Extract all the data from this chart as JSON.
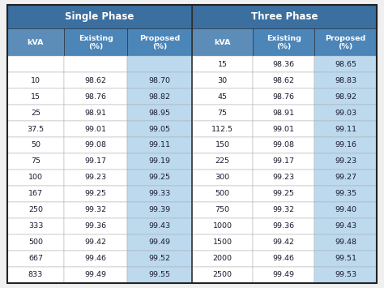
{
  "title_single": "Single Phase",
  "title_three": "Three Phase",
  "col_headers": [
    "kVA",
    "Existing\n(%)",
    "Proposed\n(%)",
    "kVA",
    "Existing\n(%)",
    "Proposed\n(%)"
  ],
  "single_phase": [
    [
      "",
      "",
      ""
    ],
    [
      "10",
      "98.62",
      "98.70"
    ],
    [
      "15",
      "98.76",
      "98.82"
    ],
    [
      "25",
      "98.91",
      "98.95"
    ],
    [
      "37.5",
      "99.01",
      "99.05"
    ],
    [
      "50",
      "99.08",
      "99.11"
    ],
    [
      "75",
      "99.17",
      "99.19"
    ],
    [
      "100",
      "99.23",
      "99.25"
    ],
    [
      "167",
      "99.25",
      "99.33"
    ],
    [
      "250",
      "99.32",
      "99.39"
    ],
    [
      "333",
      "99.36",
      "99.43"
    ],
    [
      "500",
      "99.42",
      "99.49"
    ],
    [
      "667",
      "99.46",
      "99.52"
    ],
    [
      "833",
      "99.49",
      "99.55"
    ]
  ],
  "three_phase": [
    [
      "15",
      "98.36",
      "98.65"
    ],
    [
      "30",
      "98.62",
      "98.83"
    ],
    [
      "45",
      "98.76",
      "98.92"
    ],
    [
      "75",
      "98.91",
      "99.03"
    ],
    [
      "112.5",
      "99.01",
      "99.11"
    ],
    [
      "150",
      "99.08",
      "99.16"
    ],
    [
      "225",
      "99.17",
      "99.23"
    ],
    [
      "300",
      "99.23",
      "99.27"
    ],
    [
      "500",
      "99.25",
      "99.35"
    ],
    [
      "750",
      "99.32",
      "99.40"
    ],
    [
      "1000",
      "99.36",
      "99.43"
    ],
    [
      "1500",
      "99.42",
      "99.48"
    ],
    [
      "2000",
      "99.46",
      "99.51"
    ],
    [
      "2500",
      "99.49",
      "99.53"
    ]
  ],
  "header_dark_blue": "#3B6FA0",
  "header_medium_blue": "#4C85B8",
  "kva_col_bg": "#5B8DB8",
  "proposed_col_bg": "#BDD9EE",
  "existing_col_bg": "#FFFFFF",
  "kva_data_bg": "#FFFFFF",
  "row_border": "#B0BEC5",
  "outer_border": "#333333",
  "header_text_color": "#FFFFFF",
  "data_text_color": "#1A1A2E",
  "figsize": [
    4.74,
    3.55
  ],
  "dpi": 100
}
